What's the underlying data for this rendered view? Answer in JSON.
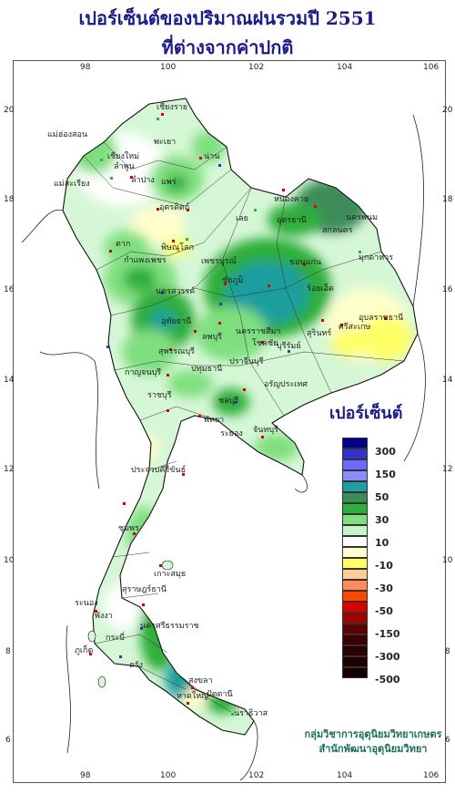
{
  "title": {
    "line1": "เปอร์เซ็นต์ของปริมาณฝนรวมปี  2551",
    "line2": "ที่ต่างจากค่าปกติ"
  },
  "axes": {
    "lon_ticks": [
      "98",
      "100",
      "102",
      "104",
      "106"
    ],
    "lat_ticks": [
      "20",
      "18",
      "16",
      "14",
      "12",
      "10",
      "8",
      "6"
    ]
  },
  "legend": {
    "title": "เปอร์เซ็นต์",
    "colors": [
      "#00008b",
      "#3333cc",
      "#6b6bff",
      "#1e9e9e",
      "#3c8c5a",
      "#2eae3a",
      "#7fdf7f",
      "#c8f5c8",
      "#ffffff",
      "#ffffcc",
      "#ffff66",
      "#ffcc99",
      "#ff8c5a",
      "#ff4500",
      "#dd0000",
      "#a30000",
      "#600000"
    ],
    "labels": [
      "300",
      "150",
      "50",
      "30",
      "10",
      "-10",
      "-30",
      "-50",
      "-150",
      "-300",
      "-500"
    ]
  },
  "places": [
    {
      "name": "เชียงราย"
    },
    {
      "name": "แม่ฮ่องสอน"
    },
    {
      "name": "เชียงใหม่"
    },
    {
      "name": "ลำพูน"
    },
    {
      "name": "พะเยา"
    },
    {
      "name": "น่าน"
    },
    {
      "name": "ลำปาง"
    },
    {
      "name": "แพร่"
    },
    {
      "name": "แม่สะเรียง"
    },
    {
      "name": "อุตรดิตถ์"
    },
    {
      "name": "ตาก"
    },
    {
      "name": "พิษณุโลก"
    },
    {
      "name": "หนองคาย"
    },
    {
      "name": "อุดรธานี"
    },
    {
      "name": "นครพนม"
    },
    {
      "name": "สกลนคร"
    },
    {
      "name": "มุกดาหาร"
    },
    {
      "name": "เลย"
    },
    {
      "name": "ขอนแก่น"
    },
    {
      "name": "กำแพงเพชร"
    },
    {
      "name": "เพชรบูรณ์"
    },
    {
      "name": "ชัยภูมิ"
    },
    {
      "name": "นครสวรรค์"
    },
    {
      "name": "ร้อยเอ็ด"
    },
    {
      "name": "อุบลราชธานี"
    },
    {
      "name": "อุทัยธานี"
    },
    {
      "name": "ลพบุรี"
    },
    {
      "name": "นครราชสีมา"
    },
    {
      "name": "สุรินทร์"
    },
    {
      "name": "ศรีสะเกษ"
    },
    {
      "name": "สุพรรณบุรี"
    },
    {
      "name": "โชคชัย"
    },
    {
      "name": "บุรีรัมย์"
    },
    {
      "name": "กาญจนบุรี"
    },
    {
      "name": "ปทุมธานี"
    },
    {
      "name": "ราชบุรี"
    },
    {
      "name": "ปราจีนบุรี"
    },
    {
      "name": "อรัญประเทศ"
    },
    {
      "name": "ชลบุรี"
    },
    {
      "name": "พัทยา"
    },
    {
      "name": "ระยอง"
    },
    {
      "name": "จันทบุรี"
    },
    {
      "name": "ประจวบคีรีขันธ์"
    },
    {
      "name": "ชุมพร"
    },
    {
      "name": "เกาะสมุย"
    },
    {
      "name": "สุราษฎร์ธานี"
    },
    {
      "name": "ระนอง"
    },
    {
      "name": "พังงา"
    },
    {
      "name": "กระบี่"
    },
    {
      "name": "ภูเก็ต"
    },
    {
      "name": "ตรัง"
    },
    {
      "name": "สงขลา"
    },
    {
      "name": "หาดใหญ่"
    },
    {
      "name": "ปัตตานี"
    },
    {
      "name": "นราธิวาส"
    },
    {
      "name": "นครศรีธรรมราช"
    }
  ],
  "credit": {
    "line1": "กลุ่มวิชาการอุตุนิยมวิทยาเกษตร",
    "line2": "สำนักพัฒนาอุตุนิยมวิทยา"
  }
}
